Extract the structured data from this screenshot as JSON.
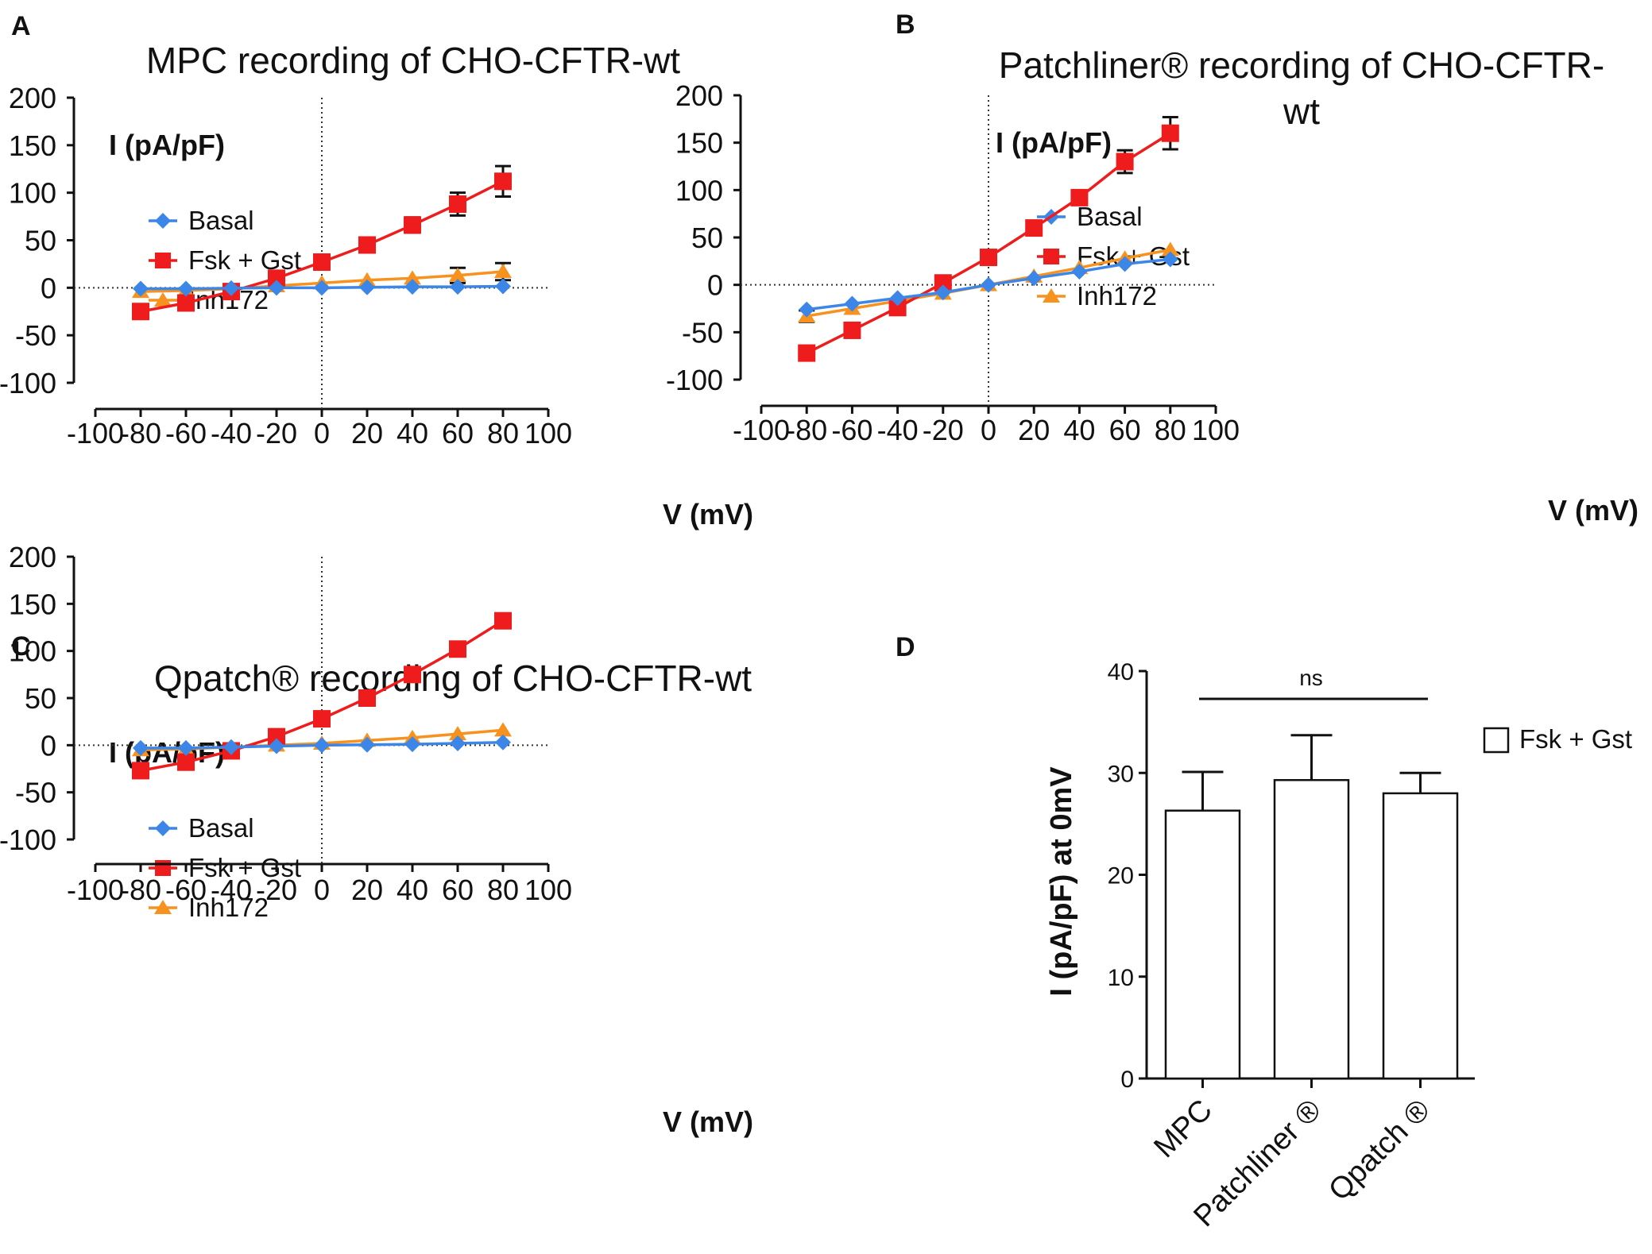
{
  "panels": [
    {
      "label": "A",
      "title": [
        "MPC recording of CHO-CFTR-wt"
      ],
      "ylabel": "I (pA/pF)",
      "xlabel": "V (mV)",
      "legend": [
        "Basal",
        "Fsk + Gst",
        "Inh172"
      ]
    },
    {
      "label": "B",
      "title": [
        "Patchliner® recording of CHO-CFTR-",
        "wt"
      ],
      "ylabel": "I (pA/pF)",
      "xlabel": "V (mV)",
      "legend": [
        "Basal",
        "Fsk + Gst",
        "Inh172"
      ]
    },
    {
      "label": "C",
      "title": [
        "Qpatch® recording of CHO-CFTR-wt"
      ],
      "ylabel": "I (pA/pF)",
      "xlabel": "V (mV)",
      "legend": [
        "Basal",
        "Fsk + Gst",
        "Inh172"
      ]
    },
    {
      "label": "D",
      "ylabel": "I (pA/pF) at 0mV",
      "legend": [
        "Fsk + Gst"
      ],
      "annotation": "ns"
    }
  ],
  "colors": {
    "basal": "#3b86e6",
    "fsk": "#ee1c1c",
    "inh": "#f7921e",
    "axis": "#111111",
    "bar_fill": "#ffffff"
  },
  "chart_data": [
    {
      "type": "line",
      "panel": "A",
      "title": "MPC recording of CHO-CFTR-wt",
      "xlabel": "V (mV)",
      "ylabel": "I (pA/pF)",
      "xlim": [
        -100,
        100
      ],
      "ylim": [
        -100,
        200
      ],
      "xticks": [
        -100,
        -80,
        -60,
        -40,
        -20,
        0,
        20,
        40,
        60,
        80,
        100
      ],
      "yticks": [
        -100,
        -50,
        0,
        50,
        100,
        150,
        200
      ],
      "x": [
        -80,
        -60,
        -40,
        -20,
        0,
        20,
        40,
        60,
        80
      ],
      "series": [
        {
          "name": "Basal",
          "marker": "diamond",
          "values": [
            -1,
            -1,
            -0.5,
            0,
            0,
            0.5,
            1,
            1,
            1.5
          ],
          "errors": [
            0,
            0,
            0,
            0,
            0,
            0,
            0,
            0,
            0
          ]
        },
        {
          "name": "Fsk + Gst",
          "marker": "square",
          "values": [
            -25,
            -16,
            -4,
            10,
            27,
            45,
            66,
            88,
            112
          ],
          "errors": [
            2,
            2,
            2,
            2,
            3,
            3,
            8,
            12,
            16
          ]
        },
        {
          "name": "Inh172",
          "marker": "triangle",
          "values": [
            -4,
            -3,
            -1,
            2,
            5,
            8,
            10,
            13,
            17
          ],
          "errors": [
            0,
            0,
            0,
            0,
            0,
            0,
            0,
            8,
            9
          ]
        }
      ]
    },
    {
      "type": "line",
      "panel": "B",
      "title": "Patchliner® recording of CHO-CFTR-wt",
      "xlabel": "V (mV)",
      "ylabel": "I (pA/pF)",
      "xlim": [
        -100,
        100
      ],
      "ylim": [
        -100,
        200
      ],
      "xticks": [
        -100,
        -80,
        -60,
        -40,
        -20,
        0,
        20,
        40,
        60,
        80,
        100
      ],
      "yticks": [
        -100,
        -50,
        0,
        50,
        100,
        150,
        200
      ],
      "x": [
        -80,
        -60,
        -40,
        -20,
        0,
        20,
        40,
        60,
        80
      ],
      "series": [
        {
          "name": "Basal",
          "marker": "diamond",
          "values": [
            -26,
            -20,
            -14,
            -8,
            0,
            7,
            14,
            22,
            27
          ],
          "errors": [
            0,
            0,
            0,
            0,
            0,
            0,
            0,
            0,
            0
          ]
        },
        {
          "name": "Fsk + Gst",
          "marker": "square",
          "values": [
            -72,
            -48,
            -24,
            2,
            29,
            60,
            92,
            130,
            160
          ],
          "errors": [
            6,
            2,
            2,
            2,
            2,
            2,
            7,
            12,
            17
          ]
        },
        {
          "name": "Inh172",
          "marker": "triangle",
          "values": [
            -33,
            -25,
            -17,
            -9,
            0,
            9,
            18,
            28,
            37
          ],
          "errors": [
            6,
            0,
            0,
            0,
            0,
            0,
            0,
            0,
            0
          ]
        }
      ]
    },
    {
      "type": "line",
      "panel": "C",
      "title": "Qpatch® recording of CHO-CFTR-wt",
      "xlabel": "V (mV)",
      "ylabel": "I (pA/pF)",
      "xlim": [
        -100,
        100
      ],
      "ylim": [
        -100,
        200
      ],
      "xticks": [
        -100,
        -80,
        -60,
        -40,
        -20,
        0,
        20,
        40,
        60,
        80,
        100
      ],
      "yticks": [
        -100,
        -50,
        0,
        50,
        100,
        150,
        200
      ],
      "x": [
        -80,
        -60,
        -40,
        -20,
        0,
        20,
        40,
        60,
        80
      ],
      "series": [
        {
          "name": "Basal",
          "marker": "diamond",
          "values": [
            -3,
            -3,
            -2,
            -1,
            0,
            0.5,
            1,
            2,
            3
          ],
          "errors": [
            0,
            0,
            0,
            0,
            0,
            0,
            0,
            0,
            0
          ]
        },
        {
          "name": "Fsk + Gst",
          "marker": "square",
          "values": [
            -27,
            -18,
            -6,
            9,
            28,
            50,
            75,
            102,
            132
          ],
          "errors": [
            1,
            1,
            1,
            1,
            2,
            2,
            2,
            2,
            7
          ]
        },
        {
          "name": "Inh172",
          "marker": "triangle",
          "values": [
            -5,
            -4,
            -2,
            0,
            2,
            5,
            8,
            12,
            16
          ],
          "errors": [
            0,
            0,
            0,
            0,
            0,
            0,
            0,
            0,
            0
          ]
        }
      ]
    },
    {
      "type": "bar",
      "panel": "D",
      "ylabel": "I (pA/pF) at 0mV",
      "categories": [
        "MPC",
        "Patchliner ®",
        "Qpatch ®"
      ],
      "series": [
        {
          "name": "Fsk + Gst",
          "values": [
            26.3,
            29.3,
            28.0
          ],
          "errors": [
            3.8,
            4.4,
            2.0
          ]
        }
      ],
      "ylim": [
        0,
        40
      ],
      "yticks": [
        0,
        10,
        20,
        30,
        40
      ],
      "annotation": "ns",
      "legend_position": "top-right"
    }
  ]
}
